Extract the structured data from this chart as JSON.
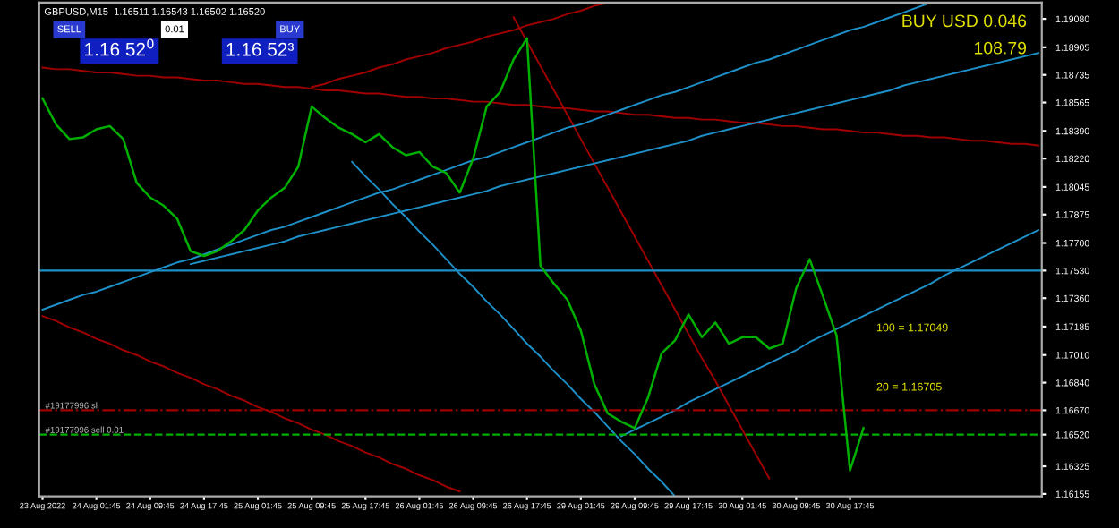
{
  "chart_data": {
    "type": "line",
    "title": "GBPUSD,M15  1.16511 1.16543 1.16502 1.16520",
    "categories": [
      "23 Aug 2022",
      null,
      null,
      null,
      "24 Aug 01:45",
      null,
      null,
      null,
      "24 Aug 09:45",
      null,
      null,
      null,
      "24 Aug 17:45",
      null,
      null,
      null,
      "25 Aug 01:45",
      null,
      null,
      null,
      "25 Aug 09:45",
      null,
      null,
      null,
      "25 Aug 17:45",
      null,
      null,
      null,
      "26 Aug 01:45",
      null,
      null,
      null,
      "26 Aug 09:45",
      null,
      null,
      null,
      "26 Aug 17:45",
      null,
      null,
      null,
      "29 Aug 01:45",
      null,
      null,
      null,
      "29 Aug 09:45",
      null,
      null,
      null,
      "29 Aug 17:45",
      null,
      null,
      null,
      "30 Aug 01:45",
      null,
      null,
      null,
      "30 Aug 09:45",
      null,
      null,
      null,
      "30 Aug 17:45",
      null,
      null,
      null,
      null,
      null,
      null,
      null,
      null,
      null,
      null,
      null,
      null,
      null,
      null
    ],
    "series": [
      {
        "color": "#00b000",
        "values": [
          1.1859,
          1.1843,
          1.1834,
          1.1835,
          1.184,
          1.1842,
          1.1834,
          1.1807,
          1.1798,
          1.1793,
          1.1785,
          1.1765,
          1.1762,
          1.1765,
          1.1771,
          1.1778,
          1.179,
          1.1798,
          1.1804,
          1.1817,
          1.1854,
          1.1847,
          1.1841,
          1.1837,
          1.1832,
          1.1837,
          1.1829,
          1.1824,
          1.1826,
          1.1817,
          1.1813,
          1.1801,
          1.1822,
          1.1854,
          1.1863,
          1.1883,
          1.1896,
          1.1756,
          1.1745,
          1.1735,
          1.1716,
          1.1683,
          1.1665,
          1.166,
          1.1656,
          1.1675,
          1.1702,
          1.171,
          1.1726,
          1.1712,
          1.1721,
          1.1708,
          1.1712,
          1.1712,
          1.1705,
          1.1708,
          1.1742,
          1.176,
          1.1737,
          1.1713,
          1.163,
          1.1656,
          null,
          null,
          null,
          null,
          null,
          null,
          null,
          null,
          null,
          null,
          null,
          null,
          null
        ]
      },
      {
        "color": "#a00000",
        "values": [
          1.1878,
          1.1877,
          1.1877,
          1.1876,
          1.1875,
          1.1875,
          1.1874,
          1.1873,
          1.1873,
          1.1872,
          1.1872,
          1.1871,
          1.187,
          1.187,
          1.1869,
          1.1868,
          1.1868,
          1.1867,
          1.1866,
          1.1866,
          1.1865,
          1.1864,
          1.1864,
          1.1863,
          1.1862,
          1.1862,
          1.1861,
          1.186,
          1.186,
          1.1859,
          1.1859,
          1.1858,
          1.1857,
          1.1857,
          1.1856,
          1.1855,
          1.1855,
          1.1854,
          1.1853,
          1.1853,
          1.1852,
          1.1851,
          1.1851,
          1.185,
          1.1849,
          1.1849,
          1.1848,
          1.1847,
          1.1847,
          1.1846,
          1.1846,
          1.1845,
          1.1844,
          1.1844,
          1.1843,
          1.1842,
          1.1842,
          1.1841,
          1.184,
          1.184,
          1.1839,
          1.1838,
          1.1838,
          1.1837,
          1.1836,
          1.1836,
          1.1835,
          1.1835,
          1.1834,
          1.1833,
          1.1833,
          1.1832,
          1.1831,
          1.1831,
          1.183
        ]
      },
      {
        "color": "#a00000",
        "values": [
          null,
          null,
          null,
          null,
          null,
          null,
          null,
          null,
          null,
          null,
          null,
          null,
          null,
          null,
          null,
          null,
          null,
          null,
          null,
          null,
          1.1866,
          1.1868,
          1.1871,
          1.1873,
          1.1875,
          1.1878,
          1.188,
          1.1883,
          1.1885,
          1.1887,
          1.189,
          1.1892,
          1.1894,
          1.1897,
          1.1899,
          1.1901,
          1.1904,
          1.1906,
          1.1908,
          1.1911,
          1.1913,
          1.1916,
          1.1918,
          null,
          null,
          null,
          null,
          null,
          null,
          null,
          null,
          null,
          null,
          null,
          null,
          null,
          null,
          null,
          null,
          null,
          null,
          null,
          null,
          null,
          null,
          null,
          null,
          null,
          null,
          null,
          null,
          null,
          null,
          null,
          null
        ]
      },
      {
        "color": "#a00000",
        "values": [
          null,
          null,
          null,
          null,
          null,
          null,
          null,
          null,
          null,
          null,
          null,
          null,
          null,
          null,
          null,
          null,
          null,
          null,
          null,
          null,
          null,
          null,
          null,
          null,
          null,
          null,
          null,
          null,
          null,
          null,
          null,
          null,
          null,
          null,
          null,
          1.1909,
          1.1894,
          1.1879,
          1.1864,
          1.1849,
          1.1834,
          1.1819,
          1.1804,
          1.1789,
          1.1774,
          1.1759,
          1.1744,
          1.1729,
          1.1714,
          1.1699,
          1.1685,
          1.167,
          1.1655,
          1.164,
          1.1625,
          null,
          null,
          null,
          null,
          null,
          null,
          null,
          null,
          null,
          null,
          null,
          null,
          null,
          null,
          null,
          null,
          null,
          null,
          null,
          null
        ]
      },
      {
        "color": "#a00000",
        "values": [
          1.1725,
          1.1722,
          1.1718,
          1.1715,
          1.1711,
          1.1708,
          1.1704,
          1.1701,
          1.1697,
          1.1694,
          1.169,
          1.1687,
          1.1683,
          1.168,
          1.1676,
          1.1673,
          1.1669,
          1.1666,
          1.1662,
          1.1659,
          1.1655,
          1.1652,
          1.1648,
          1.1645,
          1.1641,
          1.1638,
          1.1634,
          1.1631,
          1.1627,
          1.1624,
          1.162,
          1.1617,
          null,
          null,
          null,
          null,
          null,
          null,
          null,
          null,
          null,
          null,
          null,
          null,
          null,
          null,
          null,
          null,
          null,
          null,
          null,
          null,
          null,
          null,
          null,
          null,
          null,
          null,
          null,
          null,
          null,
          null,
          null,
          null,
          null,
          null,
          null,
          null,
          null,
          null,
          null,
          null,
          null,
          null,
          null
        ]
      },
      {
        "color": "#1e90c8",
        "values": [
          1.1729,
          1.1732,
          1.1735,
          1.1738,
          1.174,
          1.1743,
          1.1746,
          1.1749,
          1.1752,
          1.1755,
          1.1758,
          1.176,
          1.1763,
          1.1766,
          1.1769,
          1.1772,
          1.1775,
          1.1778,
          1.178,
          1.1783,
          1.1786,
          1.1789,
          1.1792,
          1.1795,
          1.1798,
          1.1801,
          1.1803,
          1.1806,
          1.1809,
          1.1812,
          1.1815,
          1.1818,
          1.1821,
          1.1823,
          1.1826,
          1.1829,
          1.1832,
          1.1835,
          1.1838,
          1.1841,
          1.1843,
          1.1846,
          1.1849,
          1.1852,
          1.1855,
          1.1858,
          1.1861,
          1.1863,
          1.1866,
          1.1869,
          1.1872,
          1.1875,
          1.1878,
          1.1881,
          1.1883,
          1.1886,
          1.1889,
          1.1892,
          1.1895,
          1.1898,
          1.1901,
          1.1903,
          1.1906,
          1.1909,
          1.1912,
          1.1915,
          1.1918,
          null,
          null,
          null,
          null,
          null,
          null,
          null,
          null
        ]
      },
      {
        "color": "#1e90c8",
        "values": [
          null,
          null,
          null,
          null,
          null,
          null,
          null,
          null,
          null,
          null,
          null,
          1.1757,
          1.1759,
          1.1761,
          1.1763,
          1.1765,
          1.1767,
          1.1769,
          1.1771,
          1.1774,
          1.1776,
          1.1778,
          1.178,
          1.1782,
          1.1784,
          1.1786,
          1.1788,
          1.179,
          1.1792,
          1.1794,
          1.1796,
          1.1798,
          1.18,
          1.1802,
          1.1805,
          1.1807,
          1.1809,
          1.1811,
          1.1813,
          1.1815,
          1.1817,
          1.1819,
          1.1821,
          1.1823,
          1.1825,
          1.1827,
          1.1829,
          1.1831,
          1.1833,
          1.1836,
          1.1838,
          1.184,
          1.1842,
          1.1844,
          1.1846,
          1.1848,
          1.185,
          1.1852,
          1.1854,
          1.1856,
          1.1858,
          1.186,
          1.1862,
          1.1864,
          1.1867,
          1.1869,
          1.1871,
          1.1873,
          1.1875,
          1.1877,
          1.1879,
          1.1881,
          1.1883,
          1.1885,
          1.1887
        ]
      },
      {
        "color": "#1e90c8",
        "values": [
          null,
          null,
          null,
          null,
          null,
          null,
          null,
          null,
          null,
          null,
          null,
          null,
          null,
          null,
          null,
          null,
          null,
          null,
          null,
          null,
          null,
          null,
          null,
          1.182,
          1.1811,
          1.1803,
          1.1794,
          1.1786,
          1.1777,
          1.1769,
          1.176,
          1.1751,
          1.1743,
          1.1734,
          1.1726,
          1.1717,
          1.1708,
          1.17,
          1.1691,
          1.1683,
          1.1674,
          1.1666,
          1.1657,
          1.1648,
          1.164,
          1.1631,
          1.1623,
          1.1614,
          null,
          null,
          null,
          null,
          null,
          null,
          null,
          null,
          null,
          null,
          null,
          null,
          null,
          null,
          null,
          null,
          null,
          null,
          null,
          null,
          null,
          null,
          null,
          null,
          null,
          null,
          null
        ]
      },
      {
        "color": "#1e90c8",
        "values": [
          null,
          null,
          null,
          null,
          null,
          null,
          null,
          null,
          null,
          null,
          null,
          null,
          null,
          null,
          null,
          null,
          null,
          null,
          null,
          null,
          null,
          null,
          null,
          null,
          null,
          null,
          null,
          null,
          null,
          null,
          null,
          null,
          null,
          null,
          null,
          null,
          null,
          null,
          null,
          null,
          null,
          null,
          null,
          1.1651,
          1.1655,
          1.1659,
          1.1663,
          1.1667,
          1.1672,
          1.1676,
          1.168,
          1.1684,
          1.1688,
          1.1692,
          1.1696,
          1.17,
          1.1704,
          1.1709,
          1.1713,
          1.1717,
          1.1721,
          1.1725,
          1.1729,
          1.1733,
          1.1737,
          1.1741,
          1.1745,
          1.175,
          1.1754,
          1.1758,
          1.1762,
          1.1766,
          1.177,
          1.1774,
          1.1778
        ]
      }
    ],
    "ref_lines": [
      {
        "axis": "y",
        "value": 1.1753,
        "color": "#1e90c8",
        "line_style": "solid"
      },
      {
        "axis": "y",
        "value": 1.1667,
        "label": "#19177996 sl",
        "color": "#a00000",
        "line_style": "dashdot"
      },
      {
        "axis": "y",
        "value": 1.1652,
        "label": "#19177996 sell 0.01",
        "color": "#00b000",
        "line_style": "dashed"
      }
    ],
    "annotations": [
      "100 = 1.17049",
      "20 = 1.16705",
      "BUY USD 0.046",
      "108.79",
      "SELL",
      "0.01",
      "BUY",
      "1.16 52$^{0}$",
      "1.16 52³"
    ],
    "ylim": [
      1.1614,
      1.1918
    ],
    "yticks": [
      {
        "value": 1.1908,
        "label": "1.19080"
      },
      {
        "value": 1.18905,
        "label": "1.18905"
      },
      {
        "value": 1.18735,
        "label": "1.18735"
      },
      {
        "value": 1.18565,
        "label": "1.18565"
      },
      {
        "value": 1.1839,
        "label": "1.18390"
      },
      {
        "value": 1.1822,
        "label": "1.18220"
      },
      {
        "value": 1.18045,
        "label": "1.18045"
      },
      {
        "value": 1.17875,
        "label": "1.17875"
      },
      {
        "value": 1.177,
        "label": "1.17700"
      },
      {
        "value": 1.1753,
        "label": "1.17530"
      },
      {
        "value": 1.1736,
        "label": "1.17360"
      },
      {
        "value": 1.17185,
        "label": "1.17185"
      },
      {
        "value": 1.1701,
        "label": "1.17010"
      },
      {
        "value": 1.1684,
        "label": "1.16840"
      },
      {
        "value": 1.1667,
        "label": "1.16670"
      },
      {
        "value": 1.1652,
        "label": "1.16520"
      },
      {
        "value": 1.16325,
        "label": "1.16325"
      },
      {
        "value": 1.16155,
        "label": "1.16155"
      }
    ],
    "grid": false,
    "legend": false,
    "marker": "none",
    "line_style": "solid"
  }
}
